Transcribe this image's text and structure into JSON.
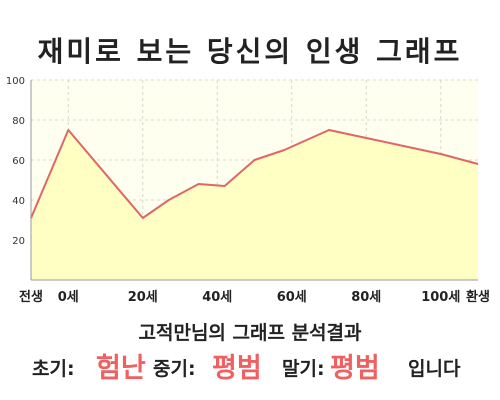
{
  "title": "재미로 보는 당신의 인생 그래프",
  "subtitle": "고적만님의 그래프 분석결과",
  "result": {
    "early_label": "초기:",
    "early_value": "험난",
    "middle_label": "중기:",
    "middle_value": "평범",
    "late_label": "말기:",
    "late_value": "평범",
    "ending": "입니다"
  },
  "colors": {
    "line": "#e06666",
    "fill": "#ffffc4",
    "plot_bg": "#fffff0",
    "grid": "#d8d8c8",
    "value_text": "#f06060"
  },
  "chart_data": {
    "type": "area",
    "title": "재미로 보는 당신의 인생 그래프",
    "xlabel": "",
    "ylabel": "",
    "xlim": [
      -10,
      110
    ],
    "ylim": [
      0,
      100
    ],
    "grid": true,
    "x_ticks": [
      {
        "x": -10,
        "label": "전생"
      },
      {
        "x": 0,
        "label": "0세"
      },
      {
        "x": 20,
        "label": "20세"
      },
      {
        "x": 40,
        "label": "40세"
      },
      {
        "x": 60,
        "label": "60세"
      },
      {
        "x": 80,
        "label": "80세"
      },
      {
        "x": 100,
        "label": "100세"
      },
      {
        "x": 110,
        "label": "환생"
      }
    ],
    "y_ticks": [
      20,
      40,
      60,
      80,
      100
    ],
    "x": [
      -10,
      0,
      20,
      27,
      35,
      42,
      50,
      58,
      70,
      80,
      90,
      100,
      110
    ],
    "values": [
      31,
      75,
      31,
      40,
      48,
      47,
      60,
      65,
      75,
      71,
      67,
      63,
      58
    ]
  }
}
